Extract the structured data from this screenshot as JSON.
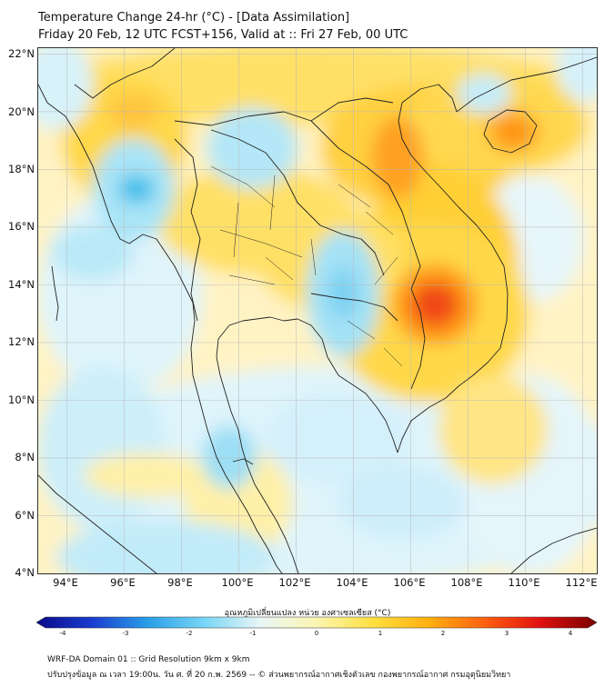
{
  "header": {
    "title_line1": "Temperature Change 24-hr (°C) - [Data Assimilation]",
    "title_line2": "Friday 20 Feb, 12 UTC FCST+156, Valid at :: Fri 27 Feb, 00 UTC"
  },
  "map": {
    "lat_labels": [
      "22°N",
      "20°N",
      "18°N",
      "16°N",
      "14°N",
      "12°N",
      "10°N",
      "8°N",
      "6°N",
      "4°N"
    ],
    "lon_labels": [
      "94°E",
      "96°E",
      "98°E",
      "100°E",
      "102°E",
      "104°E",
      "106°E",
      "108°E",
      "110°E",
      "112°E"
    ],
    "lat_range": [
      4,
      22.2
    ],
    "lon_range": [
      93,
      112.5
    ],
    "colors": {
      "background": "#fff3c4",
      "warm_light": "#ffe066",
      "warm": "#ffc020",
      "warm_strong": "#ff8a10",
      "hot": "#ef3a10",
      "cool_light": "#dff4fb",
      "cool": "#a8e4f7",
      "cool_strong": "#45bfeb",
      "coast": "#222222",
      "grid": "#b8b8b8"
    }
  },
  "colorbar": {
    "title": "อุณหภูมิเปลี่ยนแปลง หน่วย องศาเซลเซียส (°C)",
    "tick_labels": [
      "-4",
      "-3",
      "-2",
      "-1",
      "0",
      "1",
      "2",
      "3",
      "4"
    ],
    "min": -4,
    "max": 4,
    "colors": [
      "#0a0a8a",
      "#1a3dd0",
      "#2aa0e8",
      "#78d6f6",
      "#e9f6f6",
      "#fbf6b0",
      "#ffe040",
      "#ffb010",
      "#ff6010",
      "#e01010",
      "#7a0000"
    ]
  },
  "footer": {
    "line1": "WRF-DA Domain 01 :: Grid Resolution 9km x 9km",
    "line2": "ปรับปรุงข้อมูล ณ เวลา 19:00น. วัน ศ. ที่ 20 ก.พ. 2569 -- © ส่วนพยากรณ์อากาศเชิงตัวเลข กองพยากรณ์อากาศ กรมอุตุนิยมวิทยา"
  }
}
